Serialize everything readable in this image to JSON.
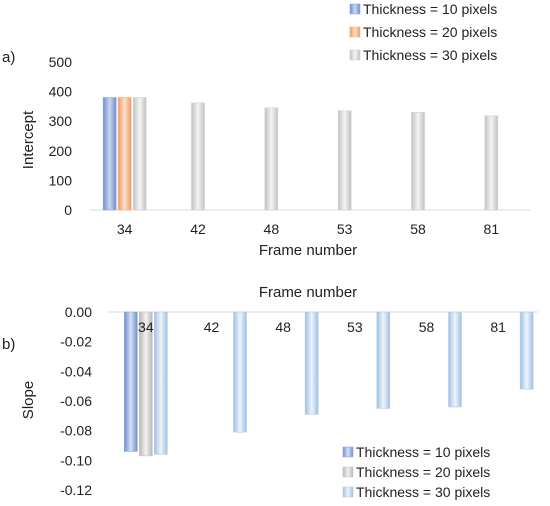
{
  "panel_labels": [
    "a)",
    "b)"
  ],
  "chart_data": [
    {
      "type": "bar",
      "title": "",
      "xlabel": "Frame number",
      "ylabel": "Intercept",
      "ylim": [
        0,
        500
      ],
      "yticks": [
        "0",
        "100",
        "200",
        "300",
        "400",
        "500"
      ],
      "categories": [
        "34",
        "42",
        "48",
        "53",
        "58",
        "81"
      ],
      "series": [
        {
          "name": "Thickness = 10 pixels",
          "color": "#8fa8d8",
          "values": [
            380,
            null,
            null,
            null,
            null,
            null
          ]
        },
        {
          "name": "Thickness  = 20 pixels",
          "color": "#f4b183",
          "values": [
            380,
            null,
            null,
            null,
            null,
            null
          ]
        },
        {
          "name": "Thickness = 30 pixels",
          "color": "#d0d0d0",
          "values": [
            380,
            362,
            345,
            335,
            330,
            318
          ]
        }
      ],
      "legend_position": "top-right",
      "grid": false
    },
    {
      "type": "bar",
      "title": "",
      "xlabel": "Frame number",
      "xaxis_position": "top",
      "ylabel": "Slope",
      "ylim": [
        -0.12,
        0
      ],
      "yticks": [
        "0.00",
        "-0.02",
        "-0.04",
        "-0.06",
        "-0.08",
        "-0.10",
        "-0.12"
      ],
      "categories": [
        "34",
        "42",
        "48",
        "53",
        "58",
        "81"
      ],
      "series": [
        {
          "name": "Thickness  = 10 pixels",
          "color": "#8fa8d8",
          "values": [
            -0.094,
            null,
            null,
            null,
            null,
            null
          ]
        },
        {
          "name": "Thickness = 20 pixels",
          "color": "#c8c8c8",
          "values": [
            -0.097,
            null,
            null,
            null,
            null,
            null
          ]
        },
        {
          "name": "Thickness = 30 pixels",
          "color": "#b3cde8",
          "values": [
            -0.096,
            -0.081,
            -0.069,
            -0.065,
            -0.064,
            -0.052
          ]
        }
      ],
      "legend_position": "bottom-right",
      "grid": false
    }
  ]
}
